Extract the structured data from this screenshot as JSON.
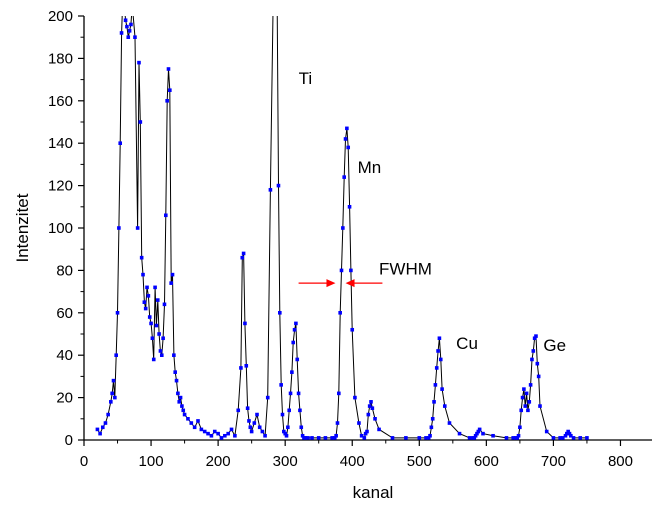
{
  "chart_data": {
    "type": "line",
    "xlabel": "kanal",
    "ylabel": "Intenzitet",
    "xlim": [
      0,
      850
    ],
    "ylim": [
      0,
      200
    ],
    "xticks": [
      0,
      100,
      200,
      300,
      400,
      500,
      600,
      700,
      800
    ],
    "yticks": [
      0,
      20,
      40,
      60,
      80,
      100,
      120,
      140,
      160,
      180,
      200
    ],
    "grid": false,
    "legend": "none",
    "series": [
      {
        "color": "#0000ff",
        "line_color": "#000000",
        "x": [
          20,
          24,
          28,
          32,
          36,
          40,
          42,
          44,
          46,
          48,
          50,
          52,
          54,
          56,
          58,
          60,
          62,
          64,
          66,
          68,
          70,
          72,
          76,
          80,
          82,
          84,
          86,
          88,
          90,
          92,
          94,
          96,
          98,
          100,
          102,
          104,
          106,
          108,
          110,
          112,
          114,
          116,
          118,
          120,
          122,
          124,
          126,
          128,
          130,
          132,
          134,
          136,
          138,
          140,
          142,
          144,
          146,
          148,
          150,
          155,
          160,
          165,
          170,
          175,
          180,
          185,
          190,
          195,
          200,
          205,
          210,
          215,
          220,
          225,
          230,
          234,
          236,
          238,
          240,
          242,
          244,
          246,
          248,
          250,
          254,
          258,
          262,
          266,
          270,
          274,
          278,
          282,
          284,
          286,
          288,
          290,
          292,
          294,
          296,
          298,
          300,
          302,
          304,
          306,
          308,
          310,
          312,
          314,
          316,
          318,
          320,
          322,
          324,
          326,
          328,
          330,
          334,
          340,
          350,
          360,
          370,
          374,
          376,
          378,
          380,
          382,
          384,
          386,
          388,
          390,
          392,
          394,
          396,
          398,
          400,
          404,
          410,
          414,
          418,
          420,
          422,
          424,
          426,
          428,
          430,
          434,
          440,
          460,
          480,
          500,
          510,
          514,
          516,
          518,
          520,
          522,
          524,
          526,
          528,
          530,
          532,
          534,
          538,
          545,
          560,
          575,
          580,
          582,
          584,
          586,
          588,
          590,
          595,
          610,
          630,
          640,
          644,
          646,
          648,
          650,
          652,
          654,
          656,
          658,
          660,
          662,
          664,
          666,
          668,
          670,
          672,
          674,
          676,
          678,
          680,
          690,
          700,
          710,
          714,
          718,
          720,
          722,
          724,
          726,
          730,
          740,
          750
        ],
        "y": [
          5,
          3,
          6,
          8,
          12,
          18,
          22,
          28,
          20,
          40,
          60,
          100,
          140,
          192,
          210,
          205,
          198,
          195,
          190,
          193,
          196,
          205,
          190,
          100,
          178,
          150,
          86,
          78,
          65,
          62,
          72,
          68,
          58,
          55,
          48,
          38,
          72,
          54,
          66,
          50,
          42,
          40,
          48,
          64,
          106,
          160,
          175,
          165,
          74,
          78,
          40,
          32,
          28,
          22,
          18,
          20,
          16,
          14,
          12,
          10,
          8,
          6,
          9,
          5,
          4,
          3,
          2,
          4,
          3,
          1,
          2,
          3,
          5,
          2,
          14,
          34,
          86,
          88,
          55,
          35,
          15,
          9,
          6,
          4,
          8,
          12,
          6,
          4,
          2,
          20,
          118,
          205,
          240,
          260,
          210,
          120,
          60,
          26,
          12,
          4,
          3,
          2,
          6,
          14,
          22,
          32,
          46,
          52,
          55,
          38,
          22,
          14,
          6,
          2,
          1,
          1,
          1,
          1,
          1,
          1,
          1,
          1,
          2,
          8,
          22,
          60,
          80,
          100,
          124,
          142,
          147,
          138,
          110,
          80,
          52,
          20,
          8,
          2,
          1,
          3,
          4,
          12,
          16,
          18,
          15,
          10,
          5,
          1,
          1,
          1,
          1,
          1,
          2,
          6,
          10,
          18,
          26,
          34,
          42,
          48,
          38,
          24,
          16,
          8,
          3,
          1,
          1,
          1,
          2,
          3,
          4,
          5,
          3,
          2,
          1,
          1,
          1,
          1,
          2,
          6,
          14,
          20,
          24,
          16,
          22,
          14,
          18,
          26,
          38,
          42,
          48,
          49,
          36,
          30,
          16,
          4,
          1,
          1,
          1,
          2,
          3,
          4,
          3,
          2,
          1,
          1,
          1
        ]
      }
    ],
    "annotations": [
      {
        "text": "Ti",
        "x": 320,
        "y": 168
      },
      {
        "text": "Mn",
        "x": 408,
        "y": 126
      },
      {
        "text": "FWHM",
        "x": 440,
        "y": 78
      },
      {
        "text": "Cu",
        "x": 555,
        "y": 43
      },
      {
        "text": "Ge",
        "x": 685,
        "y": 42
      }
    ],
    "fwhm_marker": {
      "color": "#ff0000",
      "y": 74,
      "left_x": 375,
      "right_x": 390,
      "line_start_x": 320,
      "line_end_x": 445
    }
  }
}
